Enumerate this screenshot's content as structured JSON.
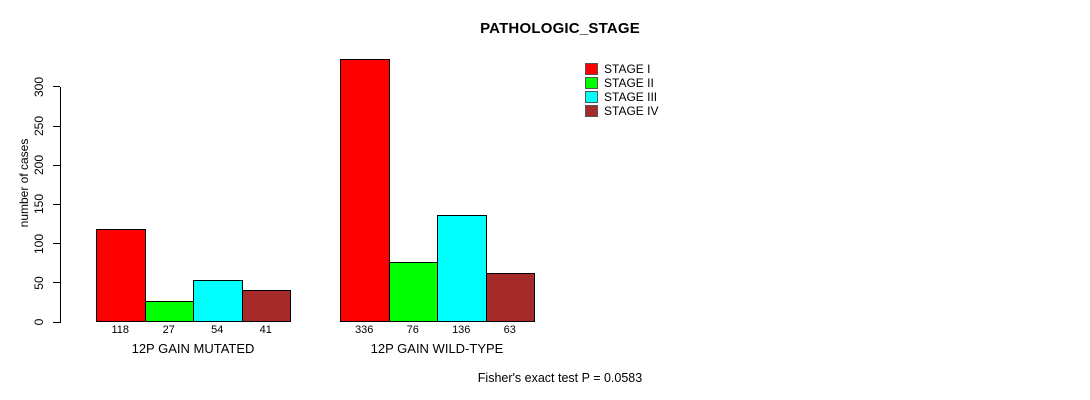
{
  "chart_data": {
    "type": "bar",
    "title": "PATHOLOGIC_STAGE",
    "ylabel": "number of cases",
    "xlabel": "",
    "categories": [
      "12P GAIN MUTATED",
      "12P GAIN WILD-TYPE"
    ],
    "series": [
      {
        "name": "STAGE I",
        "color": "#FF0000",
        "values": [
          118,
          336
        ]
      },
      {
        "name": "STAGE II",
        "color": "#00FF00",
        "values": [
          27,
          76
        ]
      },
      {
        "name": "STAGE III",
        "color": "#00FFFF",
        "values": [
          54,
          136
        ]
      },
      {
        "name": "STAGE IV",
        "color": "#A52A2A",
        "values": [
          41,
          63
        ]
      }
    ],
    "bar_value_labels": [
      [
        118,
        27,
        54,
        41
      ],
      [
        336,
        76,
        136,
        63
      ]
    ],
    "yticks": [
      0,
      50,
      100,
      150,
      200,
      250,
      300
    ],
    "ylim": [
      0,
      336
    ],
    "grid": false,
    "legend_position": "top-right",
    "annotation": "Fisher's exact test P = 0.0583"
  }
}
